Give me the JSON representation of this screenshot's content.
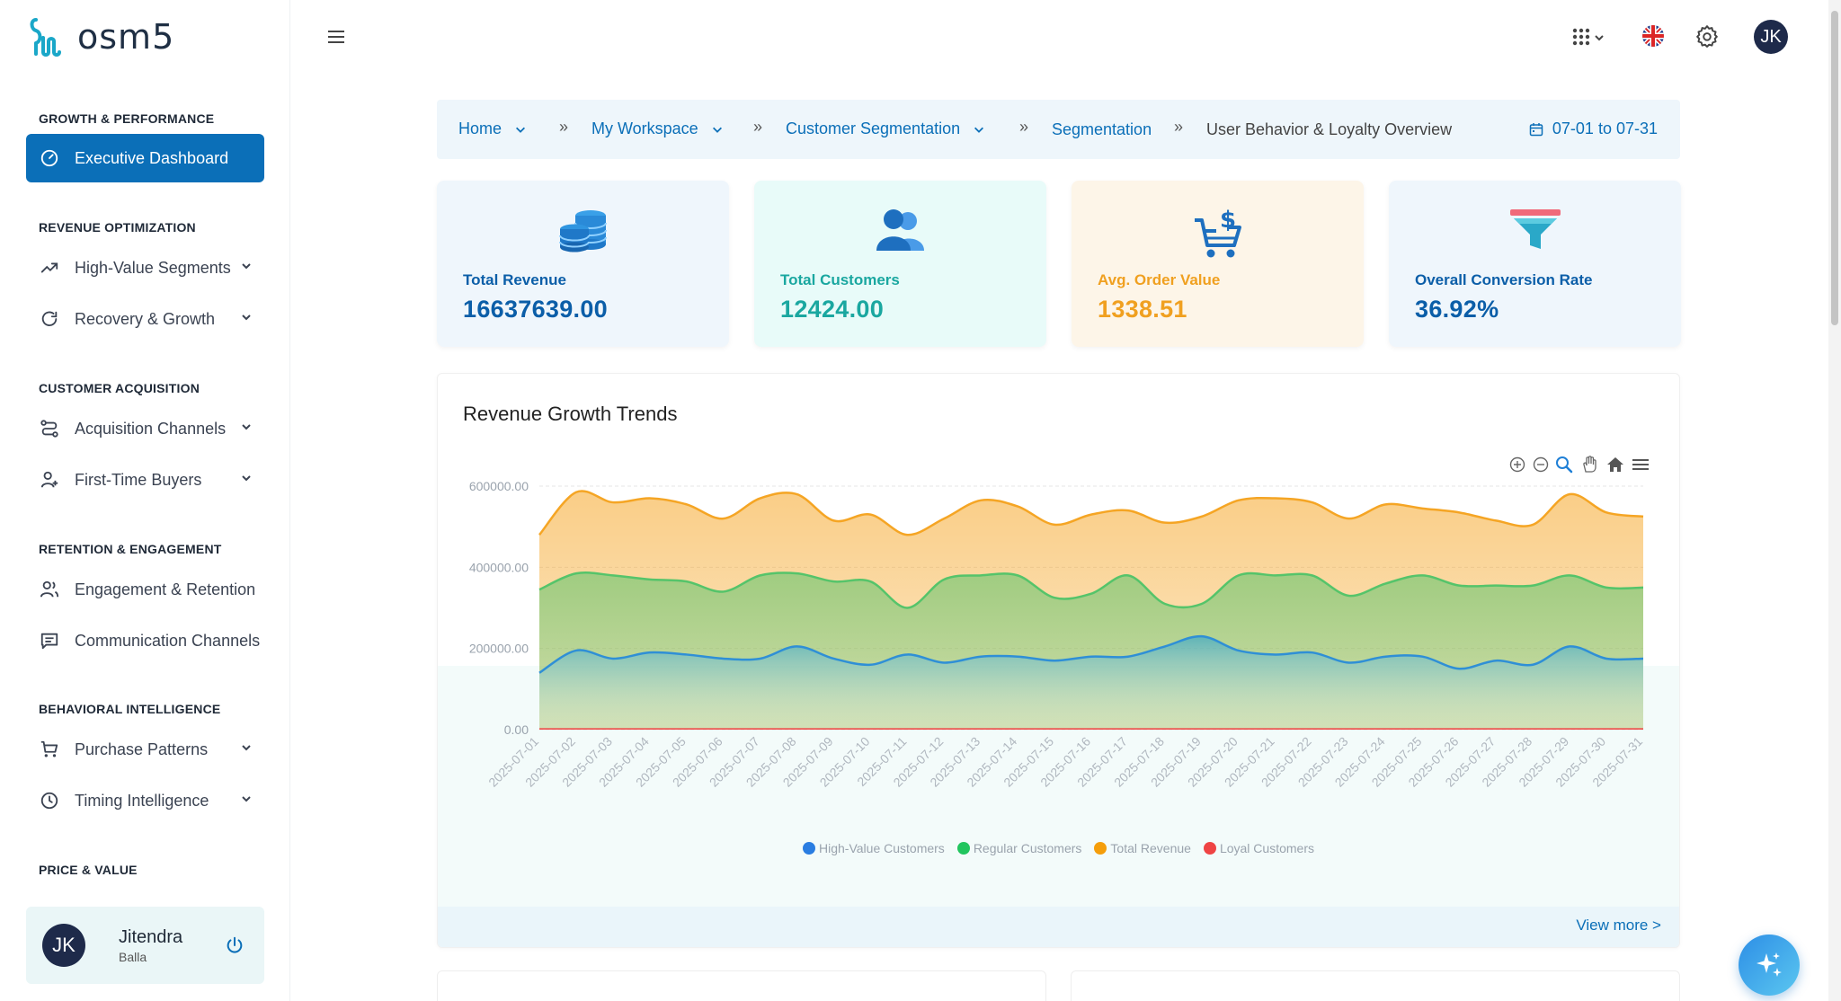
{
  "brand": {
    "name": "OSM5",
    "logo_text": "osm5"
  },
  "sidebar": {
    "sections": [
      {
        "title": "GROWTH & PERFORMANCE"
      },
      {
        "title": "REVENUE OPTIMIZATION"
      },
      {
        "title": "CUSTOMER ACQUISITION"
      },
      {
        "title": "RETENTION & ENGAGEMENT"
      },
      {
        "title": "BEHAVIORAL INTELLIGENCE"
      },
      {
        "title": "PRICE & VALUE"
      }
    ],
    "items": [
      {
        "label": "Executive Dashboard",
        "icon": "gauge-icon",
        "active": true
      },
      {
        "label": "High-Value Segments",
        "icon": "trending-up-icon"
      },
      {
        "label": "Recovery & Growth",
        "icon": "refresh-icon"
      },
      {
        "label": "Acquisition Channels",
        "icon": "route-icon"
      },
      {
        "label": "First-Time Buyers",
        "icon": "user-plus-icon"
      },
      {
        "label": "Engagement & Retention",
        "icon": "users-icon"
      },
      {
        "label": "Communication Channels",
        "icon": "message-icon"
      },
      {
        "label": "Purchase Patterns",
        "icon": "cart-icon"
      },
      {
        "label": "Timing Intelligence",
        "icon": "clock-icon"
      }
    ],
    "user": {
      "initials": "JK",
      "first_name": "Jitendra",
      "last_name": "Balla"
    }
  },
  "topbar": {
    "avatar_initials": "JK"
  },
  "breadcrumb": {
    "items": [
      "Home",
      "My Workspace",
      "Customer Segmentation"
    ],
    "segment": "Segmentation",
    "current": "User Behavior & Loyalty Overview",
    "date_range": "07-01 to 07-31"
  },
  "kpis": [
    {
      "label": "Total Revenue",
      "value": "16637639.00",
      "color": "#0b5ea8",
      "bg": "#eff6fc",
      "icon": "coins-icon"
    },
    {
      "label": "Total Customers",
      "value": "12424.00",
      "color": "#1aa7a0",
      "bg": "#e8fbf9",
      "icon": "customers-icon"
    },
    {
      "label": "Avg. Order Value",
      "value": "1338.51",
      "color": "#f0a020",
      "bg": "#fdf5e8",
      "icon": "dollar-cart-icon"
    },
    {
      "label": "Overall Conversion Rate",
      "value": "36.92%",
      "color": "#0b5ea8",
      "bg": "#eff6fc",
      "icon": "funnel-icon"
    }
  ],
  "chart_card": {
    "title": "Revenue Growth Trends",
    "view_more": "View more >"
  },
  "chart_data": {
    "type": "area",
    "title": "Revenue Growth Trends",
    "xlabel": "",
    "ylabel": "",
    "ylim": [
      0,
      600000
    ],
    "yticks": [
      "600000.00",
      "400000.00",
      "200000.00",
      "0.00"
    ],
    "categories": [
      "2025-07-01",
      "2025-07-02",
      "2025-07-03",
      "2025-07-04",
      "2025-07-05",
      "2025-07-06",
      "2025-07-07",
      "2025-07-08",
      "2025-07-09",
      "2025-07-10",
      "2025-07-11",
      "2025-07-12",
      "2025-07-13",
      "2025-07-14",
      "2025-07-15",
      "2025-07-16",
      "2025-07-17",
      "2025-07-18",
      "2025-07-19",
      "2025-07-20",
      "2025-07-21",
      "2025-07-22",
      "2025-07-23",
      "2025-07-24",
      "2025-07-25",
      "2025-07-26",
      "2025-07-27",
      "2025-07-28",
      "2025-07-29",
      "2025-07-30",
      "2025-07-31"
    ],
    "series": [
      {
        "name": "High-Value Customers",
        "color": "#2f8fd6",
        "legend_color": "#2a7de1",
        "values": [
          140000,
          195000,
          175000,
          190000,
          185000,
          175000,
          175000,
          205000,
          175000,
          160000,
          185000,
          165000,
          180000,
          180000,
          170000,
          180000,
          180000,
          205000,
          230000,
          195000,
          185000,
          190000,
          165000,
          180000,
          180000,
          150000,
          170000,
          160000,
          205000,
          175000,
          175000
        ]
      },
      {
        "name": "Regular Customers",
        "color": "#55c46a",
        "legend_color": "#22c55e",
        "values": [
          345000,
          385000,
          380000,
          370000,
          365000,
          340000,
          380000,
          385000,
          365000,
          365000,
          300000,
          370000,
          380000,
          380000,
          325000,
          335000,
          380000,
          310000,
          310000,
          380000,
          380000,
          380000,
          330000,
          360000,
          380000,
          355000,
          355000,
          355000,
          380000,
          350000,
          350000
        ]
      },
      {
        "name": "Total Revenue",
        "color": "#f5a524",
        "legend_color": "#f59e0b",
        "values": [
          480000,
          585000,
          560000,
          570000,
          555000,
          520000,
          570000,
          580000,
          515000,
          530000,
          480000,
          520000,
          565000,
          550000,
          505000,
          530000,
          540000,
          510000,
          525000,
          565000,
          570000,
          560000,
          520000,
          555000,
          545000,
          535000,
          515000,
          505000,
          580000,
          535000,
          525000
        ]
      },
      {
        "name": "Loyal Customers",
        "color": "#ef4444",
        "legend_color": "#ef4444",
        "values": [
          2000,
          2000,
          2000,
          2000,
          2000,
          2000,
          2000,
          2000,
          2000,
          2000,
          2000,
          2000,
          2000,
          2000,
          2000,
          2000,
          2000,
          2000,
          2000,
          2000,
          2000,
          2000,
          2000,
          2000,
          2000,
          2000,
          2000,
          2000,
          2000,
          2000,
          2000
        ]
      }
    ],
    "legend_position": "bottom-center"
  }
}
